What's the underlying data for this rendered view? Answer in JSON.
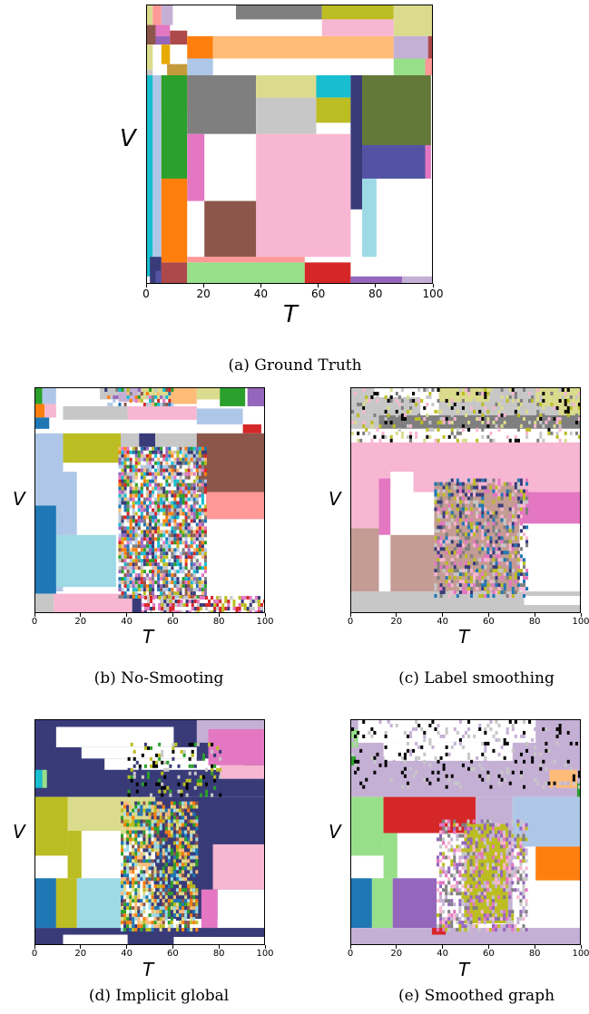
{
  "chart_data": [
    {
      "type": "heatmap",
      "panel": "a",
      "caption": "(a) Ground Truth",
      "xlabel": "T",
      "ylabel": "V",
      "xlim": [
        0,
        100
      ],
      "xticks": [
        "0",
        "20",
        "40",
        "60",
        "80",
        "100"
      ],
      "grid": false
    },
    {
      "type": "heatmap",
      "panel": "b",
      "caption": "(b) No-Smooting",
      "xlabel": "T",
      "ylabel": "V",
      "xlim": [
        0,
        100
      ],
      "xticks": [
        "0",
        "20",
        "40",
        "60",
        "80",
        "100"
      ],
      "grid": false
    },
    {
      "type": "heatmap",
      "panel": "c",
      "caption": "(c) Label smoothing",
      "xlabel": "T",
      "ylabel": "V",
      "xlim": [
        0,
        100
      ],
      "xticks": [
        "0",
        "20",
        "40",
        "60",
        "80",
        "100"
      ],
      "grid": false
    },
    {
      "type": "heatmap",
      "panel": "d",
      "caption": "(d) Implicit global",
      "xlabel": "T",
      "ylabel": "V",
      "xlim": [
        0,
        100
      ],
      "xticks": [
        "0",
        "20",
        "40",
        "60",
        "80",
        "100"
      ],
      "grid": false
    },
    {
      "type": "heatmap",
      "panel": "e",
      "caption": "(e) Smoothed graph",
      "xlabel": "T",
      "ylabel": "V",
      "xlim": [
        0,
        100
      ],
      "xticks": [
        "0",
        "20",
        "40",
        "60",
        "80",
        "100"
      ],
      "grid": false
    }
  ]
}
